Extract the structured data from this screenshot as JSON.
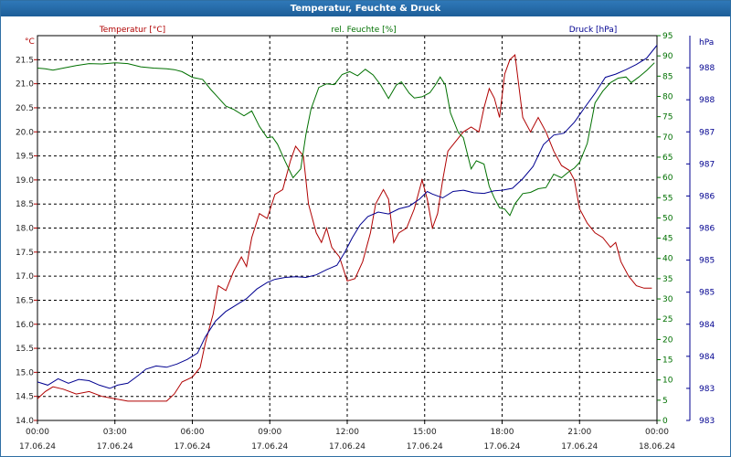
{
  "window": {
    "title": "Temperatur, Feuchte & Druck"
  },
  "chart_data": {
    "type": "line",
    "title": "Temperatur, Feuchte & Druck",
    "grid": true,
    "x": {
      "range": [
        0,
        24
      ],
      "ticks": [
        0,
        3,
        6,
        9,
        12,
        15,
        18,
        21,
        24
      ],
      "tick_labels": [
        "00:00",
        "03:00",
        "06:00",
        "09:00",
        "12:00",
        "15:00",
        "18:00",
        "21:00",
        "00:00"
      ],
      "date_labels": [
        "17.06.24",
        "17.06.24",
        "17.06.24",
        "17.06.24",
        "17.06.24",
        "17.06.24",
        "17.06.24",
        "17.06.24",
        "18.06.24"
      ]
    },
    "axes": {
      "temperature": {
        "label": "Temperatur [°C]",
        "unit": "°C",
        "color": "#b00000",
        "range": [
          14.0,
          22.0
        ],
        "tick_labels": [
          "14.0",
          "14.5",
          "15.0",
          "15.5",
          "16.0",
          "16.5",
          "17.0",
          "17.5",
          "18.0",
          "18.5",
          "19.0",
          "19.5",
          "20.0",
          "20.5",
          "21.0",
          "21.5"
        ]
      },
      "humidity": {
        "label": "rel. Feuchte [%]",
        "unit": "%",
        "color": "#007000",
        "range": [
          0,
          95
        ],
        "tick_labels": [
          "0",
          "5",
          "10",
          "15",
          "20",
          "25",
          "30",
          "35",
          "40",
          "45",
          "50",
          "55",
          "60",
          "65",
          "70",
          "75",
          "80",
          "85",
          "90",
          "95"
        ]
      },
      "pressure": {
        "label": "Druck [hPa]",
        "unit": "hPa",
        "color": "#000090",
        "range": [
          982.5,
          988.5
        ],
        "tick_labels": [
          "983",
          "983",
          "984",
          "984",
          "985",
          "985",
          "986",
          "986",
          "987",
          "987",
          "988",
          "988"
        ]
      }
    },
    "series": [
      {
        "name": "Temperatur",
        "axis": "temperature",
        "color": "#b00000",
        "points": [
          [
            0,
            14.45
          ],
          [
            0.3,
            14.6
          ],
          [
            0.6,
            14.7
          ],
          [
            1.0,
            14.65
          ],
          [
            1.5,
            14.55
          ],
          [
            2.0,
            14.6
          ],
          [
            2.5,
            14.5
          ],
          [
            3.0,
            14.45
          ],
          [
            3.5,
            14.4
          ],
          [
            4.0,
            14.4
          ],
          [
            4.5,
            14.4
          ],
          [
            5.0,
            14.4
          ],
          [
            5.3,
            14.55
          ],
          [
            5.6,
            14.8
          ],
          [
            6.0,
            14.9
          ],
          [
            6.3,
            15.1
          ],
          [
            6.5,
            15.6
          ],
          [
            6.8,
            16.2
          ],
          [
            7.0,
            16.8
          ],
          [
            7.3,
            16.7
          ],
          [
            7.6,
            17.1
          ],
          [
            7.9,
            17.4
          ],
          [
            8.1,
            17.2
          ],
          [
            8.3,
            17.8
          ],
          [
            8.6,
            18.3
          ],
          [
            8.9,
            18.2
          ],
          [
            9.2,
            18.7
          ],
          [
            9.5,
            18.8
          ],
          [
            9.8,
            19.4
          ],
          [
            10.0,
            19.7
          ],
          [
            10.3,
            19.5
          ],
          [
            10.5,
            18.5
          ],
          [
            10.8,
            17.9
          ],
          [
            11.0,
            17.7
          ],
          [
            11.2,
            18.0
          ],
          [
            11.4,
            17.6
          ],
          [
            11.7,
            17.4
          ],
          [
            12.0,
            16.9
          ],
          [
            12.3,
            16.95
          ],
          [
            12.6,
            17.3
          ],
          [
            12.9,
            17.9
          ],
          [
            13.1,
            18.5
          ],
          [
            13.4,
            18.8
          ],
          [
            13.6,
            18.6
          ],
          [
            13.8,
            17.7
          ],
          [
            14.0,
            17.9
          ],
          [
            14.3,
            18.0
          ],
          [
            14.6,
            18.4
          ],
          [
            14.9,
            19.0
          ],
          [
            15.1,
            18.6
          ],
          [
            15.3,
            18.0
          ],
          [
            15.5,
            18.3
          ],
          [
            15.7,
            19.0
          ],
          [
            15.9,
            19.6
          ],
          [
            16.2,
            19.8
          ],
          [
            16.5,
            20.0
          ],
          [
            16.8,
            20.1
          ],
          [
            17.1,
            20.0
          ],
          [
            17.3,
            20.5
          ],
          [
            17.5,
            20.9
          ],
          [
            17.7,
            20.7
          ],
          [
            17.9,
            20.3
          ],
          [
            18.1,
            21.2
          ],
          [
            18.3,
            21.5
          ],
          [
            18.5,
            21.6
          ],
          [
            18.8,
            20.3
          ],
          [
            19.1,
            20.0
          ],
          [
            19.4,
            20.3
          ],
          [
            19.7,
            20.0
          ],
          [
            20.0,
            19.6
          ],
          [
            20.3,
            19.3
          ],
          [
            20.6,
            19.2
          ],
          [
            20.8,
            19.0
          ],
          [
            21.0,
            18.4
          ],
          [
            21.3,
            18.1
          ],
          [
            21.6,
            17.9
          ],
          [
            21.9,
            17.8
          ],
          [
            22.2,
            17.6
          ],
          [
            22.4,
            17.7
          ],
          [
            22.6,
            17.3
          ],
          [
            22.9,
            17.0
          ],
          [
            23.2,
            16.8
          ],
          [
            23.5,
            16.75
          ],
          [
            23.8,
            16.75
          ]
        ]
      },
      {
        "name": "rel. Feuchte",
        "axis": "humidity",
        "color": "#007000",
        "points": [
          [
            0,
            87
          ],
          [
            0.3,
            86.8
          ],
          [
            0.6,
            86.5
          ],
          [
            1.0,
            87
          ],
          [
            1.5,
            87.6
          ],
          [
            2.0,
            88.1
          ],
          [
            2.5,
            88
          ],
          [
            3.0,
            88.3
          ],
          [
            3.5,
            88.1
          ],
          [
            4.0,
            87.3
          ],
          [
            4.5,
            87
          ],
          [
            5.0,
            86.8
          ],
          [
            5.3,
            86.6
          ],
          [
            5.6,
            86.1
          ],
          [
            6.0,
            84.7
          ],
          [
            6.4,
            84.2
          ],
          [
            6.7,
            81.8
          ],
          [
            7.0,
            79.7
          ],
          [
            7.3,
            77.6
          ],
          [
            7.6,
            76.8
          ],
          [
            8.0,
            75.2
          ],
          [
            8.3,
            76.4
          ],
          [
            8.6,
            72.6
          ],
          [
            8.9,
            69.8
          ],
          [
            9.1,
            70
          ],
          [
            9.3,
            68.2
          ],
          [
            9.6,
            63.9
          ],
          [
            9.9,
            59.9
          ],
          [
            10.2,
            62.1
          ],
          [
            10.4,
            70.6
          ],
          [
            10.6,
            76.9
          ],
          [
            10.9,
            82.2
          ],
          [
            11.2,
            83.1
          ],
          [
            11.5,
            82.9
          ],
          [
            11.8,
            85.4
          ],
          [
            12.1,
            86.1
          ],
          [
            12.4,
            85.1
          ],
          [
            12.7,
            86.7
          ],
          [
            13.0,
            85.3
          ],
          [
            13.3,
            82.8
          ],
          [
            13.6,
            79.5
          ],
          [
            13.9,
            82.8
          ],
          [
            14.1,
            83.6
          ],
          [
            14.4,
            80.8
          ],
          [
            14.6,
            79.6
          ],
          [
            14.9,
            79.9
          ],
          [
            15.2,
            80.9
          ],
          [
            15.4,
            82.7
          ],
          [
            15.6,
            84.8
          ],
          [
            15.8,
            82.8
          ],
          [
            16.0,
            75.9
          ],
          [
            16.3,
            71.1
          ],
          [
            16.5,
            69.8
          ],
          [
            16.8,
            62.1
          ],
          [
            17.0,
            64.1
          ],
          [
            17.3,
            63.3
          ],
          [
            17.5,
            57.8
          ],
          [
            17.7,
            54.9
          ],
          [
            17.9,
            52.5
          ],
          [
            18.1,
            52.2
          ],
          [
            18.3,
            50.6
          ],
          [
            18.5,
            53.5
          ],
          [
            18.8,
            56
          ],
          [
            19.1,
            56.3
          ],
          [
            19.4,
            57.2
          ],
          [
            19.7,
            57.5
          ],
          [
            20.0,
            60.8
          ],
          [
            20.3,
            59.9
          ],
          [
            20.6,
            61.5
          ],
          [
            20.8,
            62.3
          ],
          [
            21.0,
            63.7
          ],
          [
            21.3,
            68.4
          ],
          [
            21.6,
            78.4
          ],
          [
            21.9,
            81.3
          ],
          [
            22.2,
            83.4
          ],
          [
            22.5,
            84.5
          ],
          [
            22.8,
            84.8
          ],
          [
            23.0,
            83.4
          ],
          [
            23.3,
            84.8
          ],
          [
            23.6,
            86.4
          ],
          [
            23.9,
            88.3
          ]
        ]
      },
      {
        "name": "Druck",
        "axis": "pressure",
        "color": "#000090",
        "points": [
          [
            0,
            983.1
          ],
          [
            0.4,
            983.05
          ],
          [
            0.8,
            983.15
          ],
          [
            1.2,
            983.08
          ],
          [
            1.6,
            983.14
          ],
          [
            2.0,
            983.12
          ],
          [
            2.4,
            983.05
          ],
          [
            2.8,
            983.0
          ],
          [
            3.1,
            983.05
          ],
          [
            3.5,
            983.08
          ],
          [
            3.9,
            983.2
          ],
          [
            4.2,
            983.3
          ],
          [
            4.6,
            983.35
          ],
          [
            5.0,
            983.33
          ],
          [
            5.4,
            983.38
          ],
          [
            5.8,
            983.45
          ],
          [
            6.2,
            983.55
          ],
          [
            6.5,
            983.8
          ],
          [
            6.9,
            984.05
          ],
          [
            7.3,
            984.2
          ],
          [
            7.7,
            984.3
          ],
          [
            8.1,
            984.4
          ],
          [
            8.5,
            984.55
          ],
          [
            8.9,
            984.65
          ],
          [
            9.2,
            984.7
          ],
          [
            9.6,
            984.73
          ],
          [
            10.0,
            984.74
          ],
          [
            10.4,
            984.73
          ],
          [
            10.8,
            984.77
          ],
          [
            11.2,
            984.85
          ],
          [
            11.6,
            984.92
          ],
          [
            11.9,
            985.12
          ],
          [
            12.2,
            985.35
          ],
          [
            12.5,
            985.55
          ],
          [
            12.8,
            985.68
          ],
          [
            13.2,
            985.75
          ],
          [
            13.6,
            985.72
          ],
          [
            14.0,
            985.8
          ],
          [
            14.4,
            985.84
          ],
          [
            14.8,
            985.95
          ],
          [
            15.1,
            986.07
          ],
          [
            15.3,
            986.03
          ],
          [
            15.7,
            985.97
          ],
          [
            16.1,
            986.07
          ],
          [
            16.5,
            986.09
          ],
          [
            16.9,
            986.05
          ],
          [
            17.3,
            986.04
          ],
          [
            17.7,
            986.08
          ],
          [
            18.0,
            986.09
          ],
          [
            18.4,
            986.12
          ],
          [
            18.8,
            986.27
          ],
          [
            19.2,
            986.46
          ],
          [
            19.6,
            986.8
          ],
          [
            20.0,
            986.95
          ],
          [
            20.4,
            986.98
          ],
          [
            20.8,
            987.15
          ],
          [
            21.2,
            987.38
          ],
          [
            21.6,
            987.6
          ],
          [
            22.0,
            987.85
          ],
          [
            22.4,
            987.9
          ],
          [
            22.8,
            987.97
          ],
          [
            23.2,
            988.05
          ],
          [
            23.6,
            988.15
          ],
          [
            24.0,
            988.35
          ]
        ]
      }
    ]
  }
}
